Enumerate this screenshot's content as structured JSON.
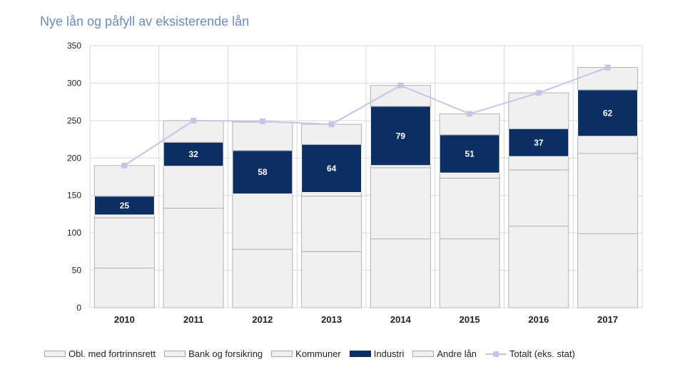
{
  "chart_data": {
    "type": "bar",
    "stacked": true,
    "title": "Nye lån og påfyll av eksisterende lån",
    "xlabel": "",
    "ylabel": "",
    "ylim": [
      0,
      350
    ],
    "yticks": [
      0,
      50,
      100,
      150,
      200,
      250,
      300,
      350
    ],
    "grid": true,
    "categories": [
      "2010",
      "2011",
      "2012",
      "2013",
      "2014",
      "2015",
      "2016",
      "2017"
    ],
    "series": [
      {
        "name": "Obl. med fortrinnsrett",
        "values": [
          53,
          133,
          78,
          75,
          92,
          92,
          109,
          99
        ],
        "color": "#f0f0f0"
      },
      {
        "name": "Bank og forsikring",
        "values": [
          67,
          56,
          74,
          74,
          95,
          81,
          75,
          107
        ],
        "color": "#f0f0f0"
      },
      {
        "name": "Kommuner",
        "values": [
          4,
          0,
          0,
          5,
          3,
          7,
          18,
          23
        ],
        "color": "#f0f0f0"
      },
      {
        "name": "Industri",
        "values": [
          25,
          32,
          58,
          64,
          79,
          51,
          37,
          62
        ],
        "color": "#0b2e63"
      },
      {
        "name": "Andre lån",
        "values": [
          41,
          29,
          38,
          27,
          28,
          28,
          48,
          30
        ],
        "color": "#f0f0f0"
      }
    ],
    "data_labels": {
      "Industri": [
        "25",
        "32",
        "58",
        "64",
        "79",
        "51",
        "37",
        "62"
      ]
    },
    "line": {
      "name": "Totalt (eks. stat)",
      "values": [
        190,
        250,
        249,
        245,
        297,
        259,
        287,
        321
      ],
      "color": "#c9c3e6"
    },
    "legend_position": "bottom"
  }
}
